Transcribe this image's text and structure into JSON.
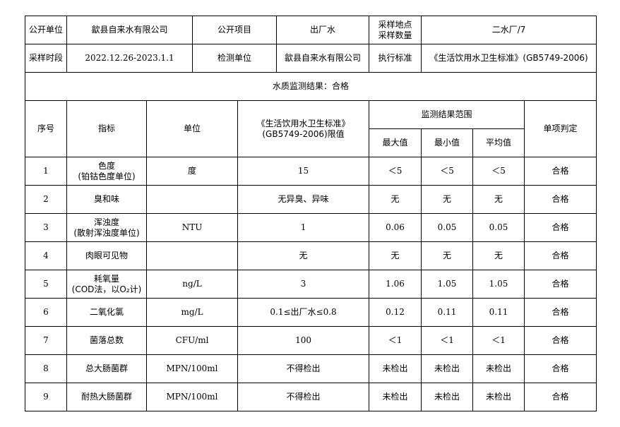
{
  "info": {
    "publisher_label": "公开单位",
    "publisher_value": "歙县自来水有限公司",
    "item_label": "公开项目",
    "item_value": "出厂水",
    "site_label_1": "采样地点",
    "site_label_2": "采样数量",
    "site_value": "二水厂/7",
    "period_label": "采样时段",
    "period_value": "2022.12.26-2023.1.1",
    "tester_label": "检测单位",
    "tester_value": "歙县自来水有限公司",
    "standard_label": "执行标准",
    "standard_value": "《生活饮用水卫生标准》(GB5749-2006)",
    "result_summary": "水质监测结果：合格"
  },
  "table": {
    "headers": {
      "no": "序号",
      "indicator": "指标",
      "unit": "单位",
      "limit_line1": "《生活饮用水卫生标准》",
      "limit_line2": "(GB5749-2006)限值",
      "range": "监测结果范围",
      "max": "最大值",
      "min": "最小值",
      "avg": "平均值",
      "verdict": "单项判定"
    },
    "rows": [
      {
        "no": "1",
        "indicator": "色度",
        "indicator_sub": "(铂钴色度单位)",
        "unit": "度",
        "limit": "15",
        "max": "＜5",
        "min": "＜5",
        "avg": "＜5",
        "verdict": "合格"
      },
      {
        "no": "2",
        "indicator": "臭和味",
        "indicator_sub": "",
        "unit": "",
        "limit": "无异臭、异味",
        "max": "无",
        "min": "无",
        "avg": "无",
        "verdict": "合格"
      },
      {
        "no": "3",
        "indicator": "浑浊度",
        "indicator_sub": "(散射浑浊度单位)",
        "unit": "NTU",
        "limit": "1",
        "max": "0.06",
        "min": "0.05",
        "avg": "0.05",
        "verdict": "合格"
      },
      {
        "no": "4",
        "indicator": "肉眼可见物",
        "indicator_sub": "",
        "unit": "",
        "limit": "无",
        "max": "无",
        "min": "无",
        "avg": "无",
        "verdict": "合格"
      },
      {
        "no": "5",
        "indicator": "耗氧量",
        "indicator_sub": "(COD法，以O₂计)",
        "unit": "ng/L",
        "limit": "3",
        "max": "1.06",
        "min": "1.05",
        "avg": "1.05",
        "verdict": "合格"
      },
      {
        "no": "6",
        "indicator": "二氧化氯",
        "indicator_sub": "",
        "unit": "mg/L",
        "limit": "0.1≤出厂水≤0.8",
        "max": "0.12",
        "min": "0.11",
        "avg": "0.11",
        "verdict": "合格"
      },
      {
        "no": "7",
        "indicator": "菌落总数",
        "indicator_sub": "",
        "unit": "CFU/ml",
        "limit": "100",
        "max": "＜1",
        "min": "＜1",
        "avg": "＜1",
        "verdict": "合格"
      },
      {
        "no": "8",
        "indicator": "总大肠菌群",
        "indicator_sub": "",
        "unit": "MPN/100ml",
        "limit": "不得检出",
        "max": "未检出",
        "min": "未检出",
        "avg": "未检出",
        "verdict": "合格"
      },
      {
        "no": "9",
        "indicator": "耐热大肠菌群",
        "indicator_sub": "",
        "unit": "MPN/100ml",
        "limit": "不得检出",
        "max": "未检出",
        "min": "未检出",
        "avg": "未检出",
        "verdict": "合格"
      }
    ]
  }
}
